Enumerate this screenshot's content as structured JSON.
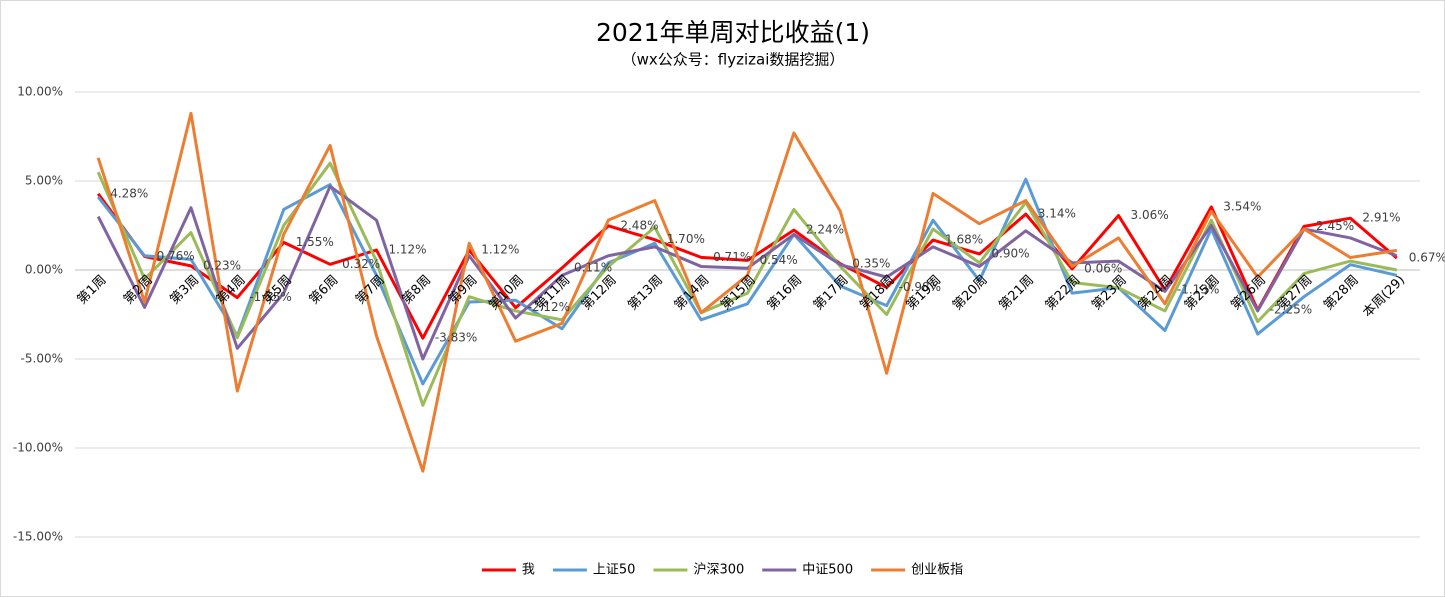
{
  "chart_data": {
    "type": "line",
    "title": "2021年单周对比收益(1)",
    "subtitle": "（wx公众号：flyzizai数据挖掘）",
    "categories": [
      "第1周",
      "第2周",
      "第3周",
      "第4周",
      "第5周",
      "第6周",
      "第7周",
      "第8周",
      "第9周",
      "第10周",
      "第11周",
      "第12周",
      "第13周",
      "第14周",
      "第15周",
      "第16周",
      "第17周",
      "第18周",
      "第19周",
      "第20周",
      "第21周",
      "第22周",
      "第23周",
      "第24周",
      "第25周",
      "第26周",
      "第27周",
      "第28周",
      "本周(29)"
    ],
    "ylim": [
      -17,
      11
    ],
    "yticks": [
      {
        "value": 10,
        "label": "10.00%"
      },
      {
        "value": 5,
        "label": "5.00%"
      },
      {
        "value": 0,
        "label": "0.00%"
      },
      {
        "value": -5,
        "label": "-5.00%"
      },
      {
        "value": -10,
        "label": "-10.00%"
      },
      {
        "value": -15,
        "label": "-15.00%"
      }
    ],
    "grid": true,
    "legend": "bottom",
    "series": [
      {
        "name": "我",
        "color": "#ff0000",
        "values": [
          4.28,
          0.76,
          0.23,
          -1.55,
          1.55,
          0.32,
          1.12,
          -3.83,
          1.12,
          -2.12,
          0.11,
          2.48,
          1.7,
          0.71,
          0.54,
          2.24,
          0.35,
          -0.98,
          1.68,
          0.9,
          3.14,
          0.06,
          3.06,
          -1.13,
          3.54,
          -2.25,
          2.45,
          2.91,
          0.67
        ],
        "value_labels": [
          "4.28%",
          "0.76%",
          "0.23%",
          "-1.55%",
          "1.55%",
          "0.32%",
          "1.12%",
          "-3.83%",
          "1.12%",
          "-2.12%",
          "0.11%",
          "2.48%",
          "1.70%",
          "0.71%",
          "0.54%",
          "2.24%",
          "0.35%",
          "-0.98%",
          "1.68%",
          "0.90%",
          "3.14%",
          "0.06%",
          "3.06%",
          "-1.13%",
          "3.54%",
          "-2.25%",
          "2.45%",
          "2.91%",
          "0.67%"
        ]
      },
      {
        "name": "上证50",
        "color": "#5b9bd5",
        "values": [
          4.1,
          0.8,
          0.6,
          -3.7,
          3.4,
          4.8,
          -0.3,
          -6.4,
          -1.8,
          -1.7,
          -3.3,
          0.4,
          1.5,
          -2.8,
          -1.9,
          2.0,
          -0.9,
          -2.0,
          2.8,
          -0.6,
          5.1,
          -1.3,
          -1.0,
          -3.4,
          2.3,
          -3.6,
          -1.5,
          0.3,
          -0.3
        ]
      },
      {
        "name": "沪深300",
        "color": "#9bbb59",
        "values": [
          5.5,
          -0.5,
          2.1,
          -3.8,
          2.5,
          6.0,
          0.5,
          -7.6,
          -1.5,
          -2.3,
          -2.8,
          0.2,
          2.4,
          -2.4,
          -1.3,
          3.4,
          0.2,
          -2.5,
          2.3,
          0.4,
          3.8,
          -0.7,
          -1.0,
          -2.3,
          2.8,
          -2.9,
          -0.2,
          0.5,
          0.0
        ]
      },
      {
        "name": "中证500",
        "color": "#8064a2",
        "values": [
          3.0,
          -2.1,
          3.5,
          -4.4,
          -1.3,
          4.7,
          2.8,
          -5.0,
          0.8,
          -2.7,
          -0.3,
          0.8,
          1.3,
          0.2,
          0.1,
          2.0,
          0.3,
          -0.4,
          1.3,
          0.2,
          2.2,
          0.4,
          0.5,
          -1.2,
          2.5,
          -2.3,
          2.3,
          1.8,
          0.8
        ]
      },
      {
        "name": "创业板指",
        "color": "#ed7d31",
        "values": [
          6.3,
          -1.8,
          8.8,
          -6.8,
          2.0,
          7.0,
          -3.7,
          -11.3,
          1.5,
          -4.0,
          -3.0,
          2.8,
          3.9,
          -2.4,
          -0.3,
          7.7,
          3.3,
          -5.8,
          4.3,
          2.6,
          3.9,
          0.2,
          1.8,
          -1.9,
          3.3,
          -0.4,
          2.3,
          0.7,
          1.1
        ]
      }
    ]
  }
}
